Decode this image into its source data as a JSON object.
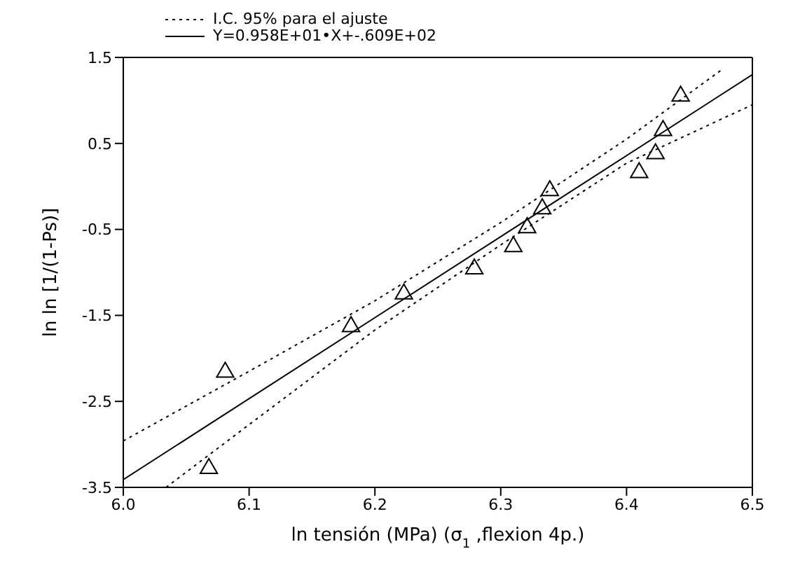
{
  "chart_data": {
    "type": "scatter",
    "xlabel": "ln tensión (MPa) (σ$_{1}$ ,flexion 4p.)",
    "ylabel": "ln ln [1/(1-Ps)]",
    "xlim": [
      6.0,
      6.5
    ],
    "xticks": [
      {
        "value": 6.0,
        "label": "6.0"
      },
      6.1,
      6.2,
      6.3,
      6.4,
      {
        "value": 6.5,
        "label": "6.5"
      }
    ],
    "ylim": [
      -3.5,
      1.5
    ],
    "yticks": [
      -3.5,
      -2.5,
      -1.5,
      -0.5,
      0.5,
      1.5
    ],
    "grid": false,
    "legend": "top left",
    "marker": "triangle",
    "series": [
      {
        "color": "#000000",
        "x": [
          6.068,
          6.081,
          6.181,
          6.223,
          6.279,
          6.31,
          6.321,
          6.333,
          6.339,
          6.41,
          6.423,
          6.429,
          6.443
        ],
        "values": [
          -3.28,
          -2.16,
          -1.63,
          -1.25,
          -0.96,
          -0.7,
          -0.48,
          -0.26,
          -0.05,
          0.16,
          0.38,
          0.65,
          1.05
        ]
      },
      {
        "type": "line",
        "name": "I.C. 95% para el ajuste",
        "color": "#000000",
        "line_style": "dotted",
        "marker": "none",
        "x": [
          6.0,
          6.1,
          6.2,
          6.3,
          6.4,
          6.475
        ],
        "values": [
          -2.96,
          -2.15,
          -1.33,
          -0.42,
          0.55,
          1.35
        ]
      },
      {
        "type": "line",
        "color": "#000000",
        "line_style": "dotted",
        "marker": "none",
        "x": [
          6.034,
          6.1,
          6.2,
          6.3,
          6.4,
          6.5
        ],
        "values": [
          -3.5,
          -2.77,
          -1.67,
          -0.68,
          0.27,
          0.95
        ]
      },
      {
        "type": "line",
        "name": "Y=0.958E+01•X+-.609E+02",
        "color": "#000000",
        "line_style": "solid",
        "marker": "none",
        "x": [
          6.0,
          6.5
        ],
        "values": [
          -3.41,
          1.3
        ]
      }
    ]
  }
}
